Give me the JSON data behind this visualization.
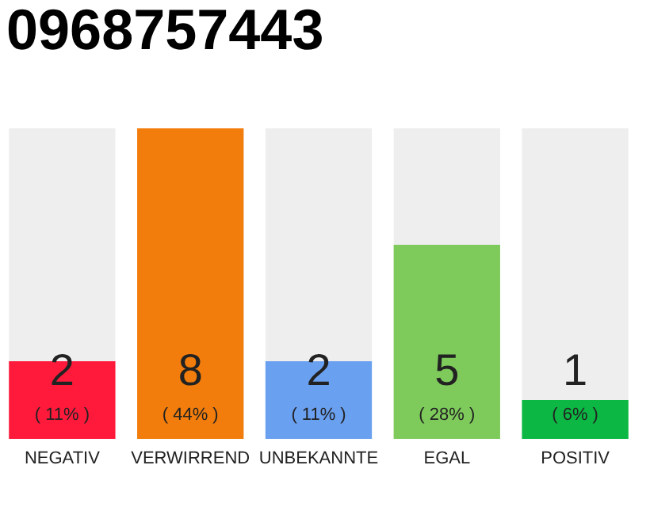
{
  "chart_data": {
    "type": "bar",
    "title": "0968757443",
    "categories": [
      "NEGATIV",
      "VERWIRREND",
      "UNBEKANNTE",
      "EGAL",
      "POSITIV"
    ],
    "values": [
      2,
      8,
      2,
      5,
      1
    ],
    "colors": [
      "#ff1a3c",
      "#f27d0c",
      "#6aa0f0",
      "#7ecb5c",
      "#0cb843"
    ],
    "data_labels": true,
    "annotations": [
      "( 11% )",
      "( 44% )",
      "( 11% )",
      "( 28% )",
      "( 6% )"
    ]
  }
}
